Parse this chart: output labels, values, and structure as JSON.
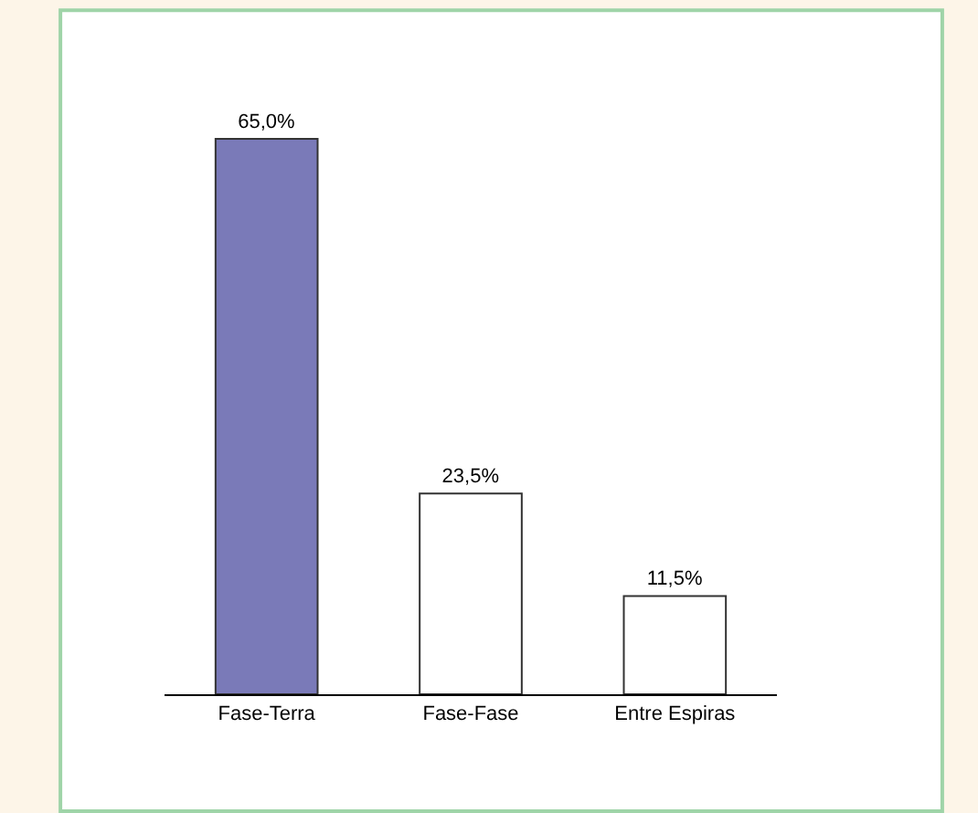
{
  "chart_data": {
    "type": "bar",
    "categories": [
      "Fase-Terra",
      "Fase-Fase",
      "Entre Espiras"
    ],
    "values": [
      65.0,
      23.5,
      11.5
    ],
    "value_labels": [
      "65,0%",
      "23,5%",
      "11,5%"
    ],
    "colors": [
      "#7a7ab8",
      "#ffffff",
      "#ffffff"
    ]
  }
}
